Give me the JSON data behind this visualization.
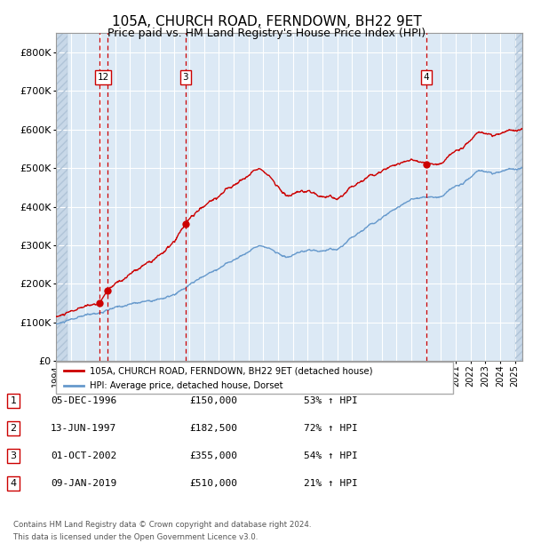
{
  "title": "105A, CHURCH ROAD, FERNDOWN, BH22 9ET",
  "subtitle": "Price paid vs. HM Land Registry's House Price Index (HPI)",
  "title_fontsize": 11,
  "subtitle_fontsize": 9,
  "ylim": [
    0,
    850000
  ],
  "yticks": [
    0,
    100000,
    200000,
    300000,
    400000,
    500000,
    600000,
    700000,
    800000
  ],
  "ytick_labels": [
    "£0",
    "£100K",
    "£200K",
    "£300K",
    "£400K",
    "£500K",
    "£600K",
    "£700K",
    "£800K"
  ],
  "plot_bg_color": "#dce9f5",
  "grid_color": "#ffffff",
  "red_line_color": "#cc0000",
  "blue_line_color": "#6699cc",
  "marker_color": "#cc0000",
  "dashed_line_color": "#cc0000",
  "legend_label_red": "105A, CHURCH ROAD, FERNDOWN, BH22 9ET (detached house)",
  "legend_label_blue": "HPI: Average price, detached house, Dorset",
  "transactions": [
    {
      "num": "12",
      "date": "05-DEC-1996",
      "date_x": 1996.92,
      "price": 150000,
      "pct": "53%",
      "dir": "↑",
      "show_box": true
    },
    {
      "num": "2",
      "date": "13-JUN-1997",
      "date_x": 1997.45,
      "price": 182500,
      "pct": "72%",
      "dir": "↑",
      "show_box": false
    },
    {
      "num": "3",
      "date": "01-OCT-2002",
      "date_x": 2002.75,
      "price": 355000,
      "pct": "54%",
      "dir": "↑",
      "show_box": true
    },
    {
      "num": "4",
      "date": "09-JAN-2019",
      "date_x": 2019.03,
      "price": 510000,
      "pct": "21%",
      "dir": "↑",
      "show_box": true
    }
  ],
  "table_rows": [
    {
      "num": "1",
      "date": "05-DEC-1996",
      "price": "£150,000",
      "pct": "53% ↑ HPI"
    },
    {
      "num": "2",
      "date": "13-JUN-1997",
      "price": "£182,500",
      "pct": "72% ↑ HPI"
    },
    {
      "num": "3",
      "date": "01-OCT-2002",
      "price": "£355,000",
      "pct": "54% ↑ HPI"
    },
    {
      "num": "4",
      "date": "09-JAN-2019",
      "price": "£510,000",
      "pct": "21% ↑ HPI"
    }
  ],
  "footnote1": "Contains HM Land Registry data © Crown copyright and database right 2024.",
  "footnote2": "This data is licensed under the Open Government Licence v3.0.",
  "xlim_start": 1994.0,
  "xlim_end": 2025.5,
  "hatch_right_start": 2025.0
}
